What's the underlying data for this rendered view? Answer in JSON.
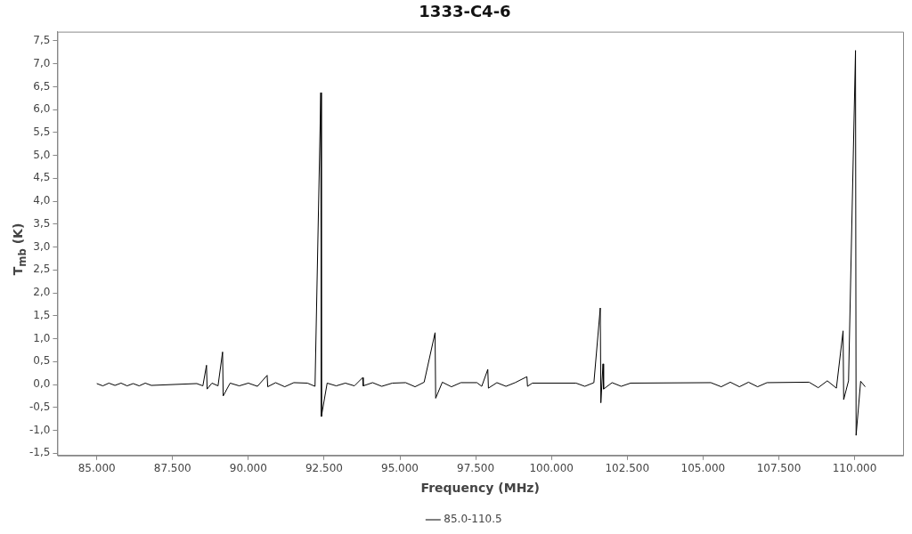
{
  "chart_data": {
    "type": "line",
    "title": "1333-C4-6",
    "xlabel": "Frequency (MHz)",
    "ylabel": "T$_{mb}$ (K)",
    "xlim": [
      83700,
      111600
    ],
    "ylim": [
      -1.55,
      7.7
    ],
    "xticks": [
      {
        "value": 85000,
        "label": "85.000"
      },
      {
        "value": 87500,
        "label": "87.500"
      },
      {
        "value": 90000,
        "label": "90.000"
      },
      {
        "value": 92500,
        "label": "92.500"
      },
      {
        "value": 95000,
        "label": "95.000"
      },
      {
        "value": 97500,
        "label": "97.500"
      },
      {
        "value": 100000,
        "label": "100.000"
      },
      {
        "value": 102500,
        "label": "102.500"
      },
      {
        "value": 105000,
        "label": "105.000"
      },
      {
        "value": 107500,
        "label": "107.500"
      },
      {
        "value": 110000,
        "label": "110.000"
      }
    ],
    "yticks": [
      {
        "value": -1.5,
        "label": "-1,5"
      },
      {
        "value": -1,
        "label": "-1,0"
      },
      {
        "value": -0.5,
        "label": "-0,5"
      },
      {
        "value": 0,
        "label": "0,0"
      },
      {
        "value": 0.5,
        "label": "0,5"
      },
      {
        "value": 1,
        "label": "1,0"
      },
      {
        "value": 1.5,
        "label": "1,5"
      },
      {
        "value": 2,
        "label": "2,0"
      },
      {
        "value": 2.5,
        "label": "2,5"
      },
      {
        "value": 3,
        "label": "3,0"
      },
      {
        "value": 3.5,
        "label": "3,5"
      },
      {
        "value": 4,
        "label": "4,0"
      },
      {
        "value": 4.5,
        "label": "4,5"
      },
      {
        "value": 5,
        "label": "5,0"
      },
      {
        "value": 5.5,
        "label": "5,5"
      },
      {
        "value": 6,
        "label": "6,0"
      },
      {
        "value": 6.5,
        "label": "6,5"
      },
      {
        "value": 7,
        "label": "7,0"
      },
      {
        "value": 7.5,
        "label": "7,5"
      }
    ],
    "grid": false,
    "legend": "bottom",
    "marker": "none",
    "line_style": "solid",
    "series": [
      {
        "name": "85.0-110.5",
        "color": "#000000",
        "x": [
          85000,
          85200,
          85400,
          85600,
          85800,
          86000,
          86200,
          86400,
          86600,
          86800,
          88300,
          88500,
          88620,
          88640,
          88800,
          89000,
          89150,
          89170,
          89400,
          89700,
          90000,
          90300,
          90620,
          90640,
          90900,
          91200,
          91500,
          91950,
          92200,
          92390,
          92410,
          92600,
          92900,
          93200,
          93500,
          93770,
          93790,
          94100,
          94400,
          94750,
          95190,
          95500,
          95800,
          96160,
          96180,
          96400,
          96700,
          97010,
          97540,
          97700,
          97900,
          97920,
          98200,
          98500,
          98800,
          99190,
          99210,
          99370,
          100810,
          101100,
          101400,
          101610,
          101630,
          101700,
          101720,
          102000,
          102300,
          102610,
          105260,
          105600,
          105900,
          106200,
          106500,
          106800,
          107110,
          108500,
          108800,
          109100,
          109400,
          109620,
          109640,
          109800,
          110030,
          110050,
          110200,
          110350
        ],
        "values": [
          0.02,
          -0.03,
          0.03,
          -0.02,
          0.03,
          -0.03,
          0.02,
          -0.03,
          0.03,
          -0.02,
          0.02,
          -0.03,
          0.42,
          -0.1,
          0.03,
          -0.03,
          0.71,
          -0.25,
          0.03,
          -0.03,
          0.03,
          -0.04,
          0.2,
          -0.05,
          0.04,
          -0.05,
          0.04,
          0.03,
          -0.04,
          6.37,
          -0.7,
          0.03,
          -0.03,
          0.03,
          -0.03,
          0.15,
          -0.03,
          0.04,
          -0.04,
          0.03,
          0.04,
          -0.05,
          0.05,
          1.13,
          -0.3,
          0.05,
          -0.05,
          0.04,
          0.04,
          -0.04,
          0.33,
          -0.08,
          0.04,
          -0.04,
          0.04,
          0.17,
          -0.04,
          0.03,
          0.03,
          -0.04,
          0.04,
          1.67,
          -0.4,
          0.45,
          -0.1,
          0.04,
          -0.04,
          0.03,
          0.04,
          -0.05,
          0.05,
          -0.05,
          0.05,
          -0.05,
          0.04,
          0.05,
          -0.07,
          0.08,
          -0.08,
          1.17,
          -0.33,
          0.08,
          7.29,
          -1.11,
          0.07,
          -0.05
        ]
      }
    ]
  }
}
